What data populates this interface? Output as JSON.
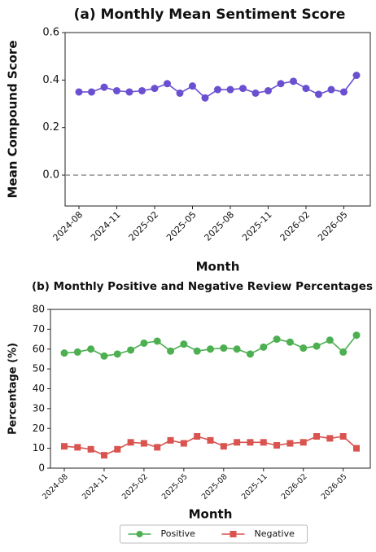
{
  "chart_data": [
    {
      "type": "line",
      "title": "(a) Monthly Mean Sentiment Score",
      "xlabel": "Month",
      "ylabel": "Mean Compound Score",
      "categories": [
        "2024-08",
        null,
        null,
        "2024-11",
        null,
        null,
        "2025-02",
        null,
        null,
        "2025-05",
        null,
        null,
        "2025-08",
        null,
        null,
        "2025-11",
        null,
        null,
        "2026-02",
        null,
        null,
        "2026-05",
        null
      ],
      "series": [
        {
          "color": "#6a4fd0",
          "marker": "circle",
          "values": [
            0.35,
            0.35,
            0.37,
            0.355,
            0.35,
            0.355,
            0.365,
            0.385,
            0.345,
            0.375,
            0.325,
            0.36,
            0.36,
            0.365,
            0.345,
            0.355,
            0.385,
            0.395,
            0.365,
            0.34,
            0.36,
            0.35,
            0.42
          ]
        }
      ],
      "ylim": [
        -0.13,
        0.6
      ],
      "yticks": [
        {
          "value": 0,
          "label": "0.0"
        },
        0.2,
        0.4,
        0.6
      ],
      "reference_line": 0,
      "grid": false
    },
    {
      "type": "line",
      "title": "(b) Monthly Positive and Negative Review Percentages",
      "xlabel": "Month",
      "ylabel": "Percentage (%)",
      "categories": [
        "2024-08",
        null,
        null,
        "2024-11",
        null,
        null,
        "2025-02",
        null,
        null,
        "2025-05",
        null,
        null,
        "2025-08",
        null,
        null,
        "2025-11",
        null,
        null,
        "2026-02",
        null,
        null,
        "2026-05",
        null
      ],
      "series": [
        {
          "name": "Positive",
          "color": "#4caf50",
          "marker": "circle",
          "values": [
            58,
            58.5,
            60,
            56.5,
            57.5,
            59.5,
            63,
            64,
            59,
            62.5,
            59,
            60,
            60.5,
            60,
            57.5,
            61,
            65,
            63.5,
            60.5,
            61.5,
            64.5,
            58.5,
            67
          ]
        },
        {
          "name": "Negative",
          "color": "#d9534f",
          "marker": "square",
          "values": [
            11,
            10.5,
            9.5,
            6.5,
            9.5,
            13,
            12.5,
            10.5,
            14,
            12.5,
            16,
            14,
            11,
            13,
            13,
            13,
            11.5,
            12.5,
            13,
            16,
            15,
            16,
            10
          ]
        }
      ],
      "ylim": [
        0,
        80
      ],
      "yticks": [
        0,
        10,
        20,
        30,
        40,
        50,
        60,
        70,
        80
      ],
      "legend": "bottom",
      "grid": false
    }
  ]
}
